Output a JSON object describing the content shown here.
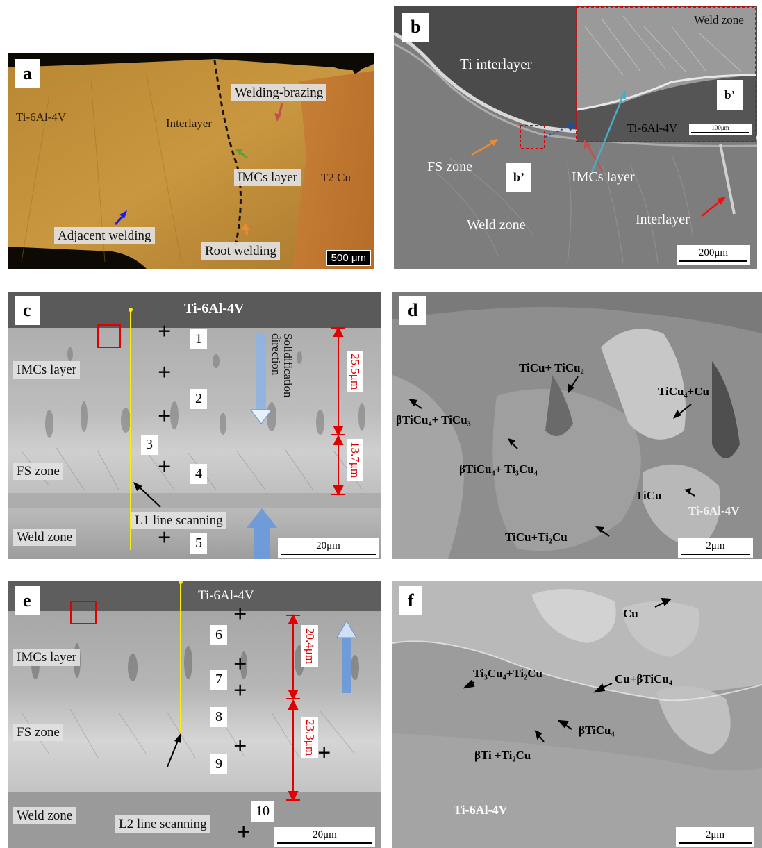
{
  "panel_a": {
    "letter": "a",
    "labels": {
      "ti64": "Ti-6Al-4V",
      "interlayer": "Interlayer",
      "welding_brazing": "Welding-brazing",
      "imcs": "IMCs layer",
      "t2cu": "T2 Cu",
      "adjacent": "Adjacent welding",
      "root": "Root welding"
    },
    "scale": "500 μm"
  },
  "panel_b": {
    "letter": "b",
    "labels": {
      "ti_interlayer": "Ti interlayer",
      "fs_zone": "FS zone",
      "b_prime_1": "b’",
      "imcs": "IMCs layer",
      "weld_zone": "Weld zone",
      "interlayer": "Interlayer"
    },
    "inset": {
      "weld_zone": "Weld zone",
      "b_prime": "b’",
      "ti64": "Ti-6Al-4V",
      "scale": "100μm"
    },
    "scale": "200μm"
  },
  "panel_c": {
    "letter": "c",
    "labels": {
      "ti64": "Ti-6Al-4V",
      "imcs": "IMCs layer",
      "fs_zone": "FS zone",
      "weld_zone": "Weld zone",
      "line_scan": "L1 line scanning",
      "solidification": "Solidification direction"
    },
    "points": [
      "1",
      "2",
      "3",
      "4",
      "5"
    ],
    "dim_top": "25.5μm",
    "dim_bottom": "13.7μm",
    "scale": "20μm"
  },
  "panel_d": {
    "letter": "d",
    "phases": {
      "p1": "TiCu+ TiCu₂",
      "p2": "TiCu₄+Cu",
      "p3": "βTiCu₄+ TiCu₃",
      "p4": "βTiCu₄+ Ti₃Cu₄",
      "p5": "TiCu",
      "p6": "Ti-6Al-4V",
      "p7": "TiCu+Ti₂Cu"
    },
    "scale": "2μm"
  },
  "panel_e": {
    "letter": "e",
    "labels": {
      "ti64": "Ti-6Al-4V",
      "imcs": "IMCs layer",
      "fs_zone": "FS zone",
      "weld_zone": "Weld zone",
      "line_scan": "L2 line scanning"
    },
    "points": [
      "6",
      "7",
      "8",
      "9",
      "10"
    ],
    "dim_top": "20.4μm",
    "dim_bottom": "23.3μm",
    "scale": "20μm"
  },
  "panel_f": {
    "letter": "f",
    "phases": {
      "p1": "Cu",
      "p2": "Ti₃Cu₄+Ti₂Cu",
      "p3": "Cu+βTiCu₄",
      "p4": "βTiCu₄",
      "p5": "βTi +Ti₂Cu",
      "p6": "Ti-6Al-4V"
    },
    "scale": "2μm"
  }
}
